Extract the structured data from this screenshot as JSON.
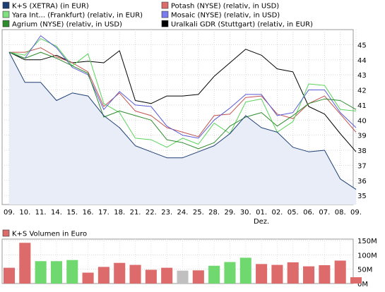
{
  "chart_data": [
    {
      "type": "line",
      "x": [
        "09.",
        "10.",
        "11.",
        "14.",
        "15.",
        "16.",
        "17.",
        "18.",
        "21.",
        "22.",
        "23.",
        "24.",
        "25.",
        "28.",
        "29.",
        "30.",
        "01.",
        "02.",
        "05.",
        "06.",
        "07.",
        "08.",
        "09."
      ],
      "x_sublabel": {
        "index": 16,
        "text": "Dez."
      },
      "ylim": [
        34.4,
        46.0
      ],
      "yticks": [
        35,
        36,
        37,
        38,
        39,
        40,
        41,
        42,
        43,
        44,
        45
      ],
      "grid": true,
      "legend_position": "top",
      "series": [
        {
          "name": "K+S (XETRA) (in EUR)",
          "color": "#1e3f73",
          "fill": "#e9edf8",
          "values": [
            44.5,
            42.5,
            42.5,
            41.3,
            41.8,
            41.6,
            40.3,
            39.5,
            38.3,
            37.9,
            37.5,
            37.5,
            37.9,
            38.3,
            39.1,
            40.3,
            39.5,
            39.2,
            38.2,
            37.9,
            38.0,
            36.1,
            35.4
          ]
        },
        {
          "name": "Potash (NYSE) (relativ, in USD)",
          "color": "#c0504d",
          "values": [
            44.5,
            44.5,
            44.8,
            44.2,
            43.8,
            43.2,
            40.9,
            41.8,
            40.6,
            40.3,
            39.5,
            39.2,
            38.9,
            40.3,
            40.4,
            41.5,
            41.6,
            40.4,
            40.1,
            41.1,
            41.6,
            40.4,
            39.2
          ]
        },
        {
          "name": "Yara Int... (Frankfurt) (relativ, in EUR)",
          "color": "#5ad35a",
          "values": [
            44.5,
            44.3,
            45.4,
            44.9,
            43.6,
            44.4,
            41.1,
            40.5,
            38.8,
            38.7,
            38.2,
            38.8,
            38.4,
            39.8,
            39.1,
            41.2,
            41.4,
            39.2,
            39.9,
            42.4,
            42.3,
            40.7,
            40.6
          ]
        },
        {
          "name": "Mosaic (NYSE) (relativ, in USD)",
          "color": "#5b5bd6",
          "values": [
            44.5,
            44.1,
            45.6,
            44.8,
            43.5,
            43.0,
            40.7,
            41.9,
            41.0,
            40.9,
            39.6,
            39.0,
            38.8,
            40.0,
            40.8,
            41.7,
            41.7,
            40.3,
            40.5,
            42.0,
            42.0,
            40.5,
            39.5
          ]
        },
        {
          "name": "Agrium (NYSE) (relativ, in USD)",
          "color": "#2e8b2e",
          "values": [
            44.5,
            44.1,
            44.5,
            44.1,
            43.6,
            43.1,
            40.2,
            40.6,
            40.3,
            40.0,
            38.7,
            38.5,
            38.1,
            38.5,
            39.6,
            40.2,
            40.5,
            39.6,
            40.3,
            41.1,
            41.4,
            41.3,
            40.7
          ]
        },
        {
          "name": "Uralkali GDR (Stuttgart) (relativ, in EUR)",
          "color": "#000000",
          "values": [
            44.5,
            44.0,
            44.0,
            44.3,
            43.8,
            43.9,
            43.8,
            44.6,
            41.3,
            41.1,
            41.6,
            41.6,
            41.7,
            42.9,
            43.8,
            44.7,
            44.3,
            43.4,
            43.2,
            40.9,
            40.4,
            39.1,
            37.9
          ]
        }
      ]
    },
    {
      "type": "bar",
      "title": "K+S Volumen in Euro",
      "legend_color": "#de6b6b",
      "ylim": [
        0,
        150
      ],
      "yticks": [
        {
          "value": 0,
          "label": "0M"
        },
        {
          "value": 50,
          "label": "50M"
        },
        {
          "value": 100,
          "label": "100M"
        },
        {
          "value": 150,
          "label": "150M"
        }
      ],
      "values": [
        55,
        142,
        78,
        78,
        82,
        38,
        58,
        72,
        65,
        48,
        55,
        45,
        46,
        62,
        75,
        90,
        68,
        65,
        74,
        60,
        64,
        80,
        22
      ],
      "colors": [
        "#de6b6b",
        "#de6b6b",
        "#6fd86f",
        "#6fd86f",
        "#6fd86f",
        "#de6b6b",
        "#de6b6b",
        "#de6b6b",
        "#de6b6b",
        "#de6b6b",
        "#de6b6b",
        "#c0c0c0",
        "#de6b6b",
        "#6fd86f",
        "#6fd86f",
        "#6fd86f",
        "#de6b6b",
        "#de6b6b",
        "#de6b6b",
        "#de6b6b",
        "#de6b6b",
        "#de6b6b",
        "#de6b6b"
      ]
    }
  ]
}
